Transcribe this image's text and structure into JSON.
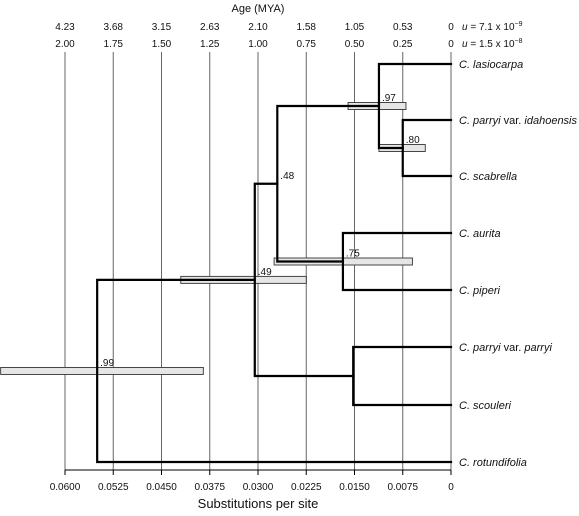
{
  "top_axis": {
    "title": "Age (MYA)",
    "rate1_values": [
      "4.23",
      "3.68",
      "3.15",
      "2.63",
      "2.10",
      "1.58",
      "1.05",
      "0.53",
      "0"
    ],
    "rate2_values": [
      "2.00",
      "1.75",
      "1.50",
      "1.25",
      "1.00",
      "0.75",
      "0.50",
      "0.25",
      "0"
    ],
    "rate1_label": "u = 7.1 x 10",
    "rate1_exp": "−9",
    "rate2_label": "u = 1.5 x 10",
    "rate2_exp": "−8"
  },
  "bottom_axis": {
    "title": "Substitutions per site",
    "ticks": [
      0.06,
      0.0525,
      0.045,
      0.0375,
      0.03,
      0.0225,
      0.015,
      0.0075,
      0
    ],
    "tick_labels": [
      "0.0600",
      "0.0525",
      "0.0450",
      "0.0375",
      "0.0300",
      "0.0225",
      "0.0150",
      "0.0075",
      "0"
    ]
  },
  "taxa": [
    {
      "genus": "C. ",
      "epithet": "lasiocarpa",
      "suffix": ""
    },
    {
      "genus": "C. ",
      "epithet": "parryi",
      "roman": " var. ",
      "infra": "idahoensis"
    },
    {
      "genus": "C. ",
      "epithet": "scabrella",
      "suffix": ""
    },
    {
      "genus": "C. ",
      "epithet": "aurita",
      "suffix": ""
    },
    {
      "genus": "C. ",
      "epithet": "piperi",
      "suffix": ""
    },
    {
      "genus": "C. ",
      "epithet": "parryi",
      "roman": " var. ",
      "infra": "parryi"
    },
    {
      "genus": "C. ",
      "epithet": "scouleri",
      "suffix": ""
    },
    {
      "genus": "C. ",
      "epithet": "rotundifolia",
      "suffix": ""
    }
  ],
  "nodes": [
    {
      "id": "n_lasio_idaho_scab",
      "depth": 0.0112,
      "support": ".97",
      "hpd": [
        0.016,
        0.007
      ]
    },
    {
      "id": "n_idaho_scab",
      "depth": 0.0075,
      "support": ".80",
      "hpd": [
        0.0112,
        0.004
      ]
    },
    {
      "id": "n_aurita_piperi",
      "depth": 0.0168,
      "support": ".75",
      "hpd": [
        0.0275,
        0.006
      ]
    },
    {
      "id": "n_upper",
      "depth": 0.027,
      "support": ".48",
      "hpd": null
    },
    {
      "id": "n_parryi_scouleri",
      "depth": 0.0152,
      "support": "",
      "hpd": null
    },
    {
      "id": "n_ingroup",
      "depth": 0.0305,
      "support": ".49",
      "hpd": [
        0.042,
        0.0225
      ]
    },
    {
      "id": "n_root",
      "depth": 0.055,
      "support": ".99",
      "hpd": [
        0.07,
        0.0385
      ]
    }
  ]
}
